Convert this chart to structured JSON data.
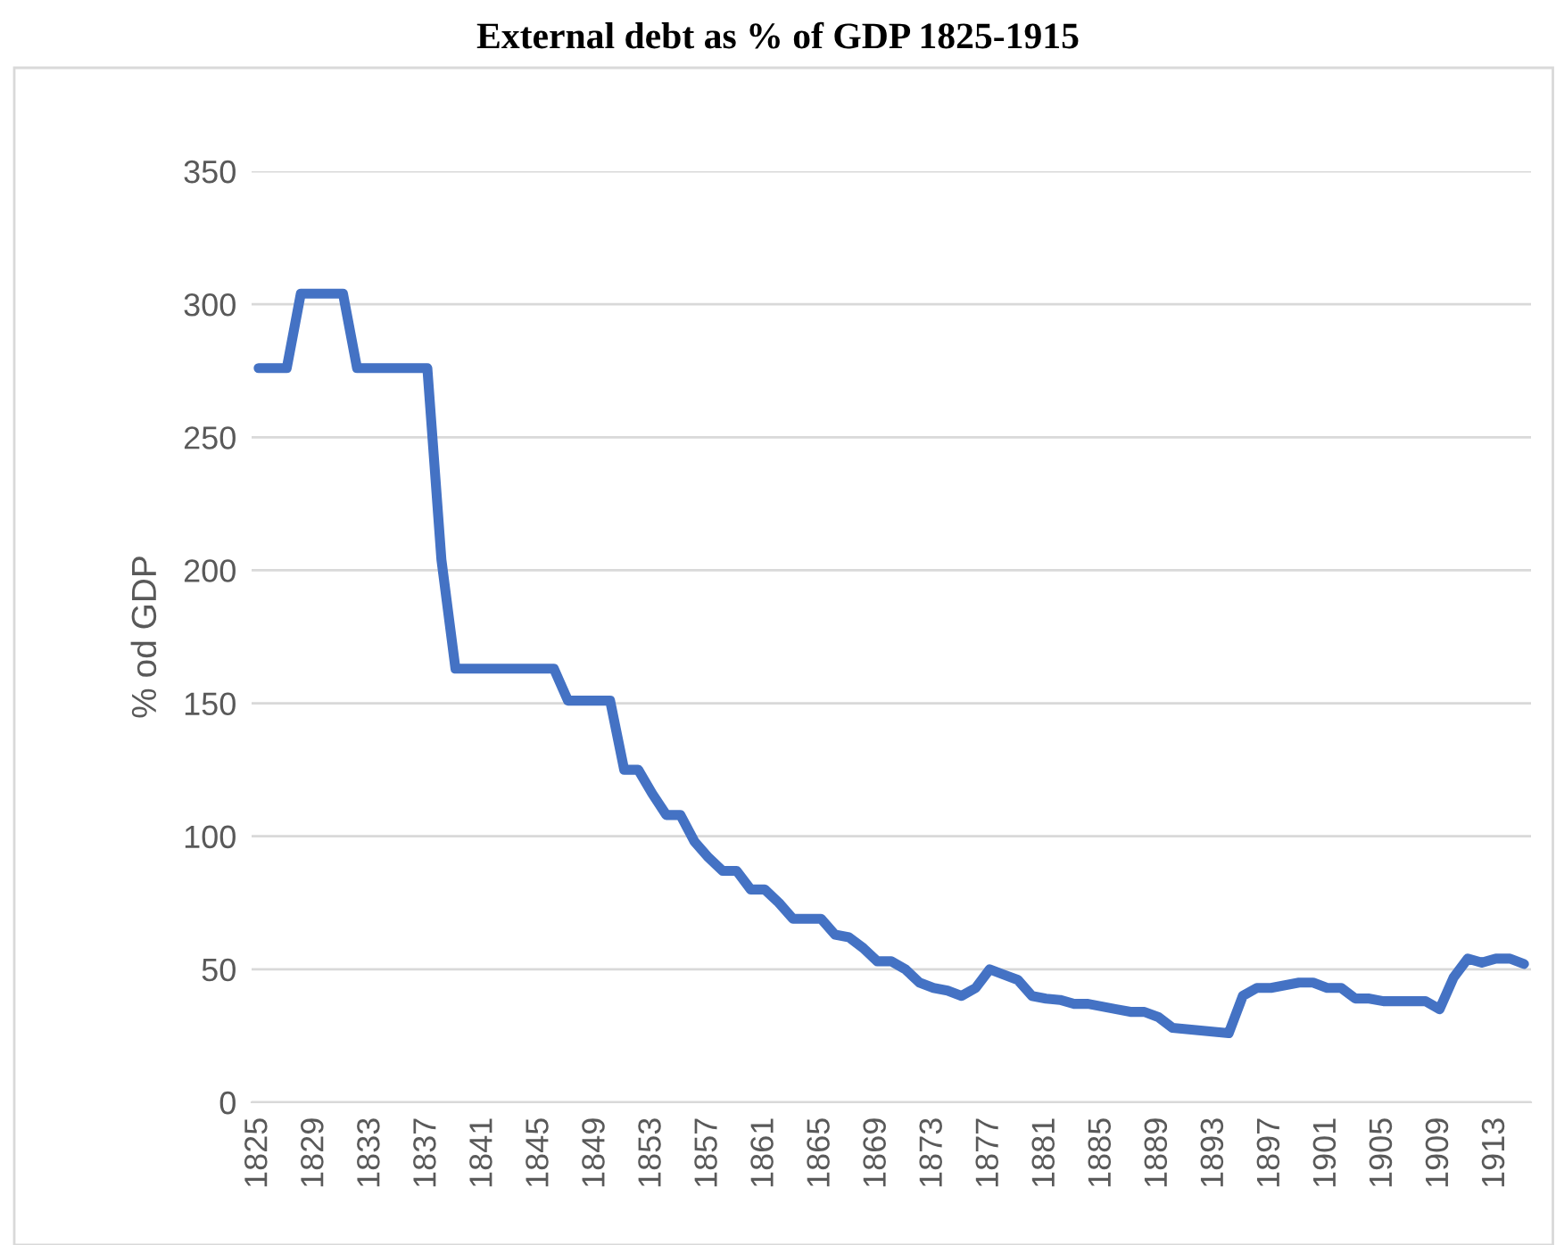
{
  "chart_data": {
    "type": "line",
    "title": "External debt as % of GDP 1825-1915",
    "ylabel": "% od GDP",
    "categories": [
      "1825",
      null,
      null,
      null,
      "1829",
      null,
      null,
      null,
      "1833",
      null,
      null,
      null,
      "1837",
      null,
      null,
      null,
      "1841",
      null,
      null,
      null,
      "1845",
      null,
      null,
      null,
      "1849",
      null,
      null,
      null,
      "1853",
      null,
      null,
      null,
      "1857",
      null,
      null,
      null,
      "1861",
      null,
      null,
      null,
      "1865",
      null,
      null,
      null,
      "1869",
      null,
      null,
      null,
      "1873",
      null,
      null,
      null,
      "1877",
      null,
      null,
      null,
      "1881",
      null,
      null,
      null,
      "1885",
      null,
      null,
      null,
      "1889",
      null,
      null,
      null,
      "1893",
      null,
      null,
      null,
      "1897",
      null,
      null,
      null,
      "1901",
      null,
      null,
      null,
      "1905",
      null,
      null,
      null,
      "1909",
      null,
      null,
      null,
      "1913",
      null,
      null
    ],
    "series": [
      {
        "color": "#4472c4",
        "values": [
          276,
          276,
          276,
          304,
          304,
          304,
          304,
          276,
          276,
          276,
          276,
          276,
          276,
          204,
          163,
          163,
          163,
          163,
          163,
          163,
          163,
          163,
          151,
          151,
          151,
          151,
          125,
          125,
          116,
          108,
          108,
          98,
          92,
          87,
          87,
          80,
          80,
          75,
          69,
          69,
          69,
          63,
          62,
          58,
          53,
          53,
          50,
          45,
          43,
          42,
          40,
          43,
          50,
          48,
          46,
          40,
          39,
          38.5,
          37,
          37,
          36,
          35,
          34,
          34,
          32,
          28,
          27.5,
          27,
          26.5,
          26,
          40,
          43,
          43,
          44,
          45,
          45,
          43,
          43,
          39,
          39,
          38,
          38,
          38,
          38,
          35,
          47,
          54,
          52.5,
          54,
          54,
          52
        ]
      }
    ],
    "ylim": [
      0,
      350
    ],
    "yticks": [
      0,
      50,
      100,
      150,
      200,
      250,
      300,
      350
    ],
    "grid": "y",
    "marker": "none",
    "line_style": "solid"
  }
}
